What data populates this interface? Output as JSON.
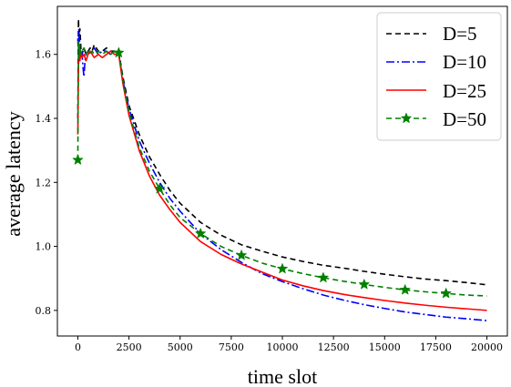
{
  "chart_data": {
    "type": "line",
    "title": "",
    "xlabel": "time slot",
    "ylabel": "average latency",
    "xlim": [
      -1000,
      21000
    ],
    "ylim": [
      0.72,
      1.75
    ],
    "xticks": [
      0,
      2500,
      5000,
      7500,
      10000,
      12500,
      15000,
      17500,
      20000
    ],
    "yticks": [
      0.8,
      1.0,
      1.2,
      1.4,
      1.6
    ],
    "ytick_labels": [
      "0.8",
      "1.0",
      "1.2",
      "1.4",
      "1.6"
    ],
    "grid": false,
    "legend_position": "top-right",
    "series": [
      {
        "name": "D=5",
        "color": "#000000",
        "style": "dashed",
        "marker": "",
        "x": [
          0,
          30,
          60,
          100,
          150,
          200,
          300,
          400,
          500,
          600,
          700,
          800,
          1000,
          1200,
          1400,
          1600,
          1800,
          2000,
          2200,
          2500,
          3000,
          3500,
          4000,
          4500,
          5000,
          6000,
          7000,
          8000,
          9000,
          10000,
          11000,
          12000,
          13000,
          14000,
          15000,
          16000,
          17000,
          18000,
          19000,
          20000
        ],
        "y": [
          1.4,
          1.71,
          1.66,
          1.68,
          1.62,
          1.6,
          1.62,
          1.6,
          1.61,
          1.62,
          1.61,
          1.63,
          1.61,
          1.61,
          1.62,
          1.61,
          1.61,
          1.61,
          1.53,
          1.44,
          1.35,
          1.28,
          1.225,
          1.175,
          1.135,
          1.075,
          1.035,
          1.005,
          0.985,
          0.967,
          0.953,
          0.941,
          0.932,
          0.922,
          0.913,
          0.905,
          0.898,
          0.893,
          0.887,
          0.88
        ]
      },
      {
        "name": "D=10",
        "color": "#0000ff",
        "style": "dashdot",
        "marker": "",
        "x": [
          0,
          30,
          60,
          100,
          150,
          200,
          250,
          300,
          350,
          400,
          500,
          600,
          700,
          800,
          1000,
          1200,
          1400,
          1600,
          1800,
          2000,
          2200,
          2500,
          3000,
          3500,
          4000,
          4500,
          5000,
          6000,
          7000,
          8000,
          9000,
          10000,
          11000,
          12000,
          13000,
          14000,
          15000,
          16000,
          17000,
          18000,
          19000,
          20000
        ],
        "y": [
          1.65,
          1.6,
          1.68,
          1.62,
          1.59,
          1.61,
          1.56,
          1.53,
          1.58,
          1.6,
          1.61,
          1.6,
          1.61,
          1.62,
          1.6,
          1.61,
          1.61,
          1.6,
          1.61,
          1.605,
          1.52,
          1.43,
          1.33,
          1.26,
          1.2,
          1.15,
          1.11,
          1.04,
          0.99,
          0.95,
          0.915,
          0.89,
          0.868,
          0.848,
          0.832,
          0.818,
          0.806,
          0.795,
          0.787,
          0.779,
          0.774,
          0.768
        ]
      },
      {
        "name": "D=25",
        "color": "#ff0000",
        "style": "solid",
        "marker": "",
        "x": [
          0,
          30,
          60,
          100,
          150,
          200,
          300,
          400,
          500,
          600,
          700,
          800,
          1000,
          1200,
          1400,
          1600,
          1800,
          2000,
          2200,
          2500,
          3000,
          3500,
          4000,
          4500,
          5000,
          6000,
          7000,
          8000,
          9000,
          10000,
          11000,
          12000,
          13000,
          14000,
          15000,
          16000,
          17000,
          18000,
          19000,
          20000
        ],
        "y": [
          1.35,
          1.56,
          1.62,
          1.58,
          1.61,
          1.59,
          1.6,
          1.58,
          1.6,
          1.61,
          1.6,
          1.59,
          1.6,
          1.59,
          1.6,
          1.61,
          1.6,
          1.6,
          1.51,
          1.41,
          1.3,
          1.22,
          1.16,
          1.115,
          1.075,
          1.015,
          0.975,
          0.945,
          0.92,
          0.895,
          0.877,
          0.862,
          0.85,
          0.84,
          0.831,
          0.823,
          0.816,
          0.81,
          0.805,
          0.8
        ]
      },
      {
        "name": "D=50",
        "color": "#008000",
        "style": "dashed",
        "marker": "star",
        "x": [
          0,
          30,
          60,
          100,
          150,
          200,
          300,
          400,
          500,
          600,
          700,
          800,
          1000,
          1200,
          1400,
          1600,
          1800,
          2000,
          2200,
          2500,
          3000,
          3500,
          4000,
          4500,
          5000,
          6000,
          7000,
          8000,
          9000,
          10000,
          11000,
          12000,
          13000,
          14000,
          15000,
          16000,
          17000,
          18000,
          19000,
          20000
        ],
        "y": [
          1.27,
          1.64,
          1.6,
          1.63,
          1.6,
          1.61,
          1.62,
          1.6,
          1.61,
          1.6,
          1.61,
          1.6,
          1.61,
          1.6,
          1.61,
          1.6,
          1.61,
          1.605,
          1.52,
          1.42,
          1.31,
          1.235,
          1.18,
          1.13,
          1.09,
          1.04,
          1.0,
          0.972,
          0.948,
          0.93,
          0.915,
          0.902,
          0.891,
          0.881,
          0.872,
          0.864,
          0.858,
          0.853,
          0.848,
          0.845
        ],
        "marker_x": [
          0,
          2000,
          4000,
          6000,
          8000,
          10000,
          12000,
          14000,
          16000,
          18000
        ]
      }
    ]
  }
}
